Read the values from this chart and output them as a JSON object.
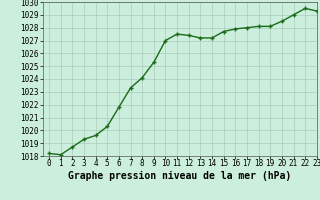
{
  "x": [
    0,
    1,
    2,
    3,
    4,
    5,
    6,
    7,
    8,
    9,
    10,
    11,
    12,
    13,
    14,
    15,
    16,
    17,
    18,
    19,
    20,
    21,
    22,
    23
  ],
  "y": [
    1018.2,
    1018.1,
    1018.7,
    1019.3,
    1019.6,
    1020.3,
    1021.8,
    1023.3,
    1024.1,
    1025.3,
    1027.0,
    1027.5,
    1027.4,
    1027.2,
    1027.2,
    1027.7,
    1027.9,
    1028.0,
    1028.1,
    1028.1,
    1028.5,
    1029.0,
    1029.5,
    1029.3
  ],
  "line_color": "#1a6b1a",
  "marker_color": "#1a6b1a",
  "bg_color": "#cceedd",
  "grid_color": "#aaccbb",
  "xlabel": "Graphe pression niveau de la mer (hPa)",
  "ylim": [
    1018,
    1030
  ],
  "xlim": [
    -0.5,
    23
  ],
  "yticks": [
    1018,
    1019,
    1020,
    1021,
    1022,
    1023,
    1024,
    1025,
    1026,
    1027,
    1028,
    1029,
    1030
  ],
  "xticks": [
    0,
    1,
    2,
    3,
    4,
    5,
    6,
    7,
    8,
    9,
    10,
    11,
    12,
    13,
    14,
    15,
    16,
    17,
    18,
    19,
    20,
    21,
    22,
    23
  ],
  "xlabel_fontsize": 7,
  "tick_fontsize": 5.5,
  "line_width": 1.0,
  "marker_size": 2.5,
  "marker": "+"
}
